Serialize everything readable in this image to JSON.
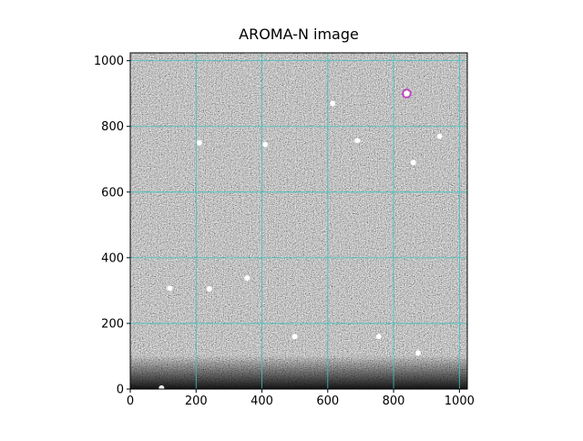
{
  "chart_data": {
    "type": "image",
    "title": "AROMA-N image",
    "xlim": [
      0,
      1024
    ],
    "ylim": [
      0,
      1024
    ],
    "xticks": [
      0,
      200,
      400,
      600,
      800,
      1000
    ],
    "yticks": [
      0,
      200,
      400,
      600,
      800,
      1000
    ],
    "grid": true,
    "grid_color": "#3fbfbf",
    "sources": {
      "color": "#ffffff",
      "x": [
        210,
        410,
        690,
        615,
        860,
        940,
        120,
        355,
        240,
        500,
        755,
        875,
        95,
        840
      ],
      "y": [
        750,
        745,
        757,
        870,
        690,
        770,
        307,
        338,
        305,
        160,
        160,
        110,
        3,
        900
      ]
    },
    "marker": {
      "x": 840,
      "y": 900,
      "color": "#cc33cc"
    }
  }
}
